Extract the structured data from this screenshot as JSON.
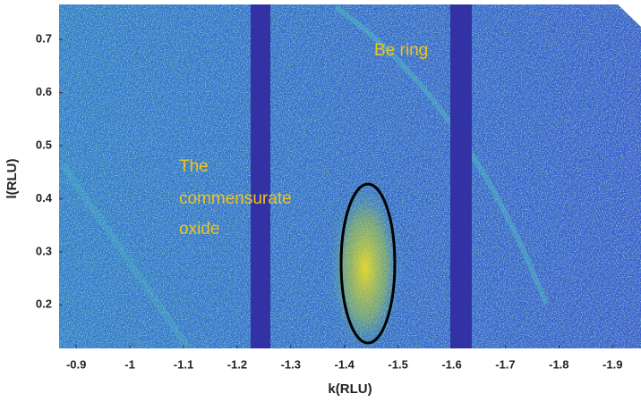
{
  "chart_data": {
    "type": "image",
    "xlabel": "k(RLU)",
    "ylabel": "l(RLU)",
    "xlim": [
      -0.868,
      -1.953
    ],
    "xticks": [
      -0.9,
      -1,
      -1.1,
      -1.2,
      -1.3,
      -1.4,
      -1.5,
      -1.6,
      -1.7,
      -1.8,
      -1.9
    ],
    "ylim": [
      0.118,
      0.766
    ],
    "yticks": [
      0.2,
      0.3,
      0.4,
      0.5,
      0.6,
      0.7
    ],
    "annotations": [
      "Be ring",
      "The",
      "commensurate",
      "oxide"
    ]
  }
}
